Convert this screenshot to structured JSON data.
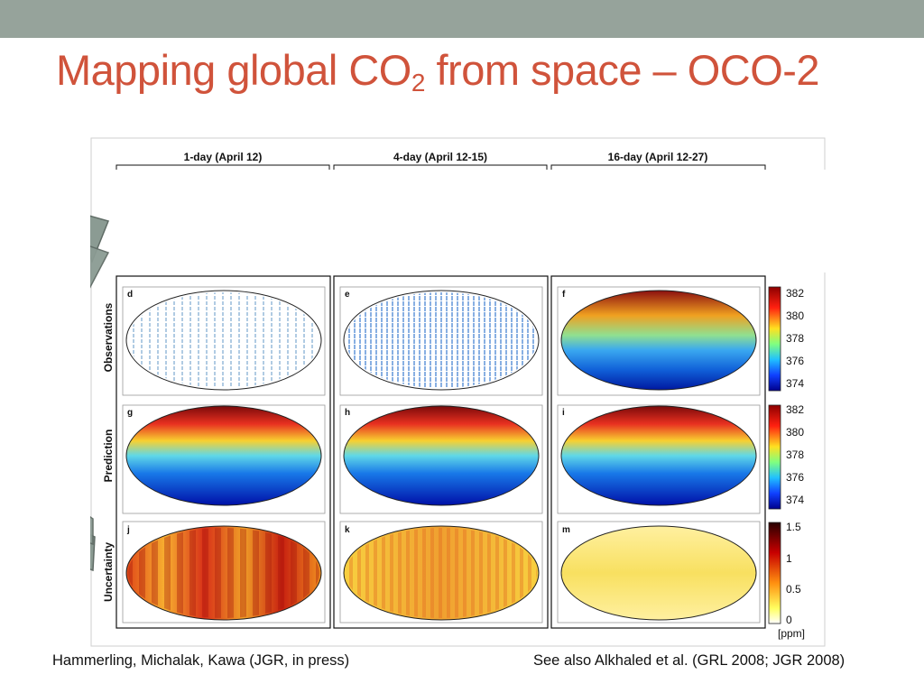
{
  "slide": {
    "title_prefix": "Mapping global CO",
    "title_subscript": "2",
    "title_suffix": " from space – OCO-2",
    "colors": {
      "title": "#d0533b",
      "topbar": "#96a39b",
      "arrow": "#8b9b93"
    }
  },
  "figure": {
    "columns": [
      "1-day (April 12)",
      "4-day (April 12-15)",
      "16-day (April 12-27)"
    ],
    "rows": [
      "Observations",
      "Prediction",
      "Uncertainty"
    ],
    "panel_letters": [
      "d",
      "e",
      "f",
      "g",
      "h",
      "i",
      "j",
      "k",
      "m"
    ],
    "colorbar_co2": {
      "ticks": [
        "382",
        "380",
        "378",
        "376",
        "374"
      ]
    },
    "colorbar_uncertainty": {
      "ticks": [
        "1.5",
        "1",
        "0.5",
        "0"
      ],
      "unit": "[ppm]"
    }
  },
  "footer": {
    "left": "Hammerling, Michalak, Kawa (JGR, in press)",
    "right": "See also Alkhaled et al. (GRL 2008; JGR 2008)"
  }
}
